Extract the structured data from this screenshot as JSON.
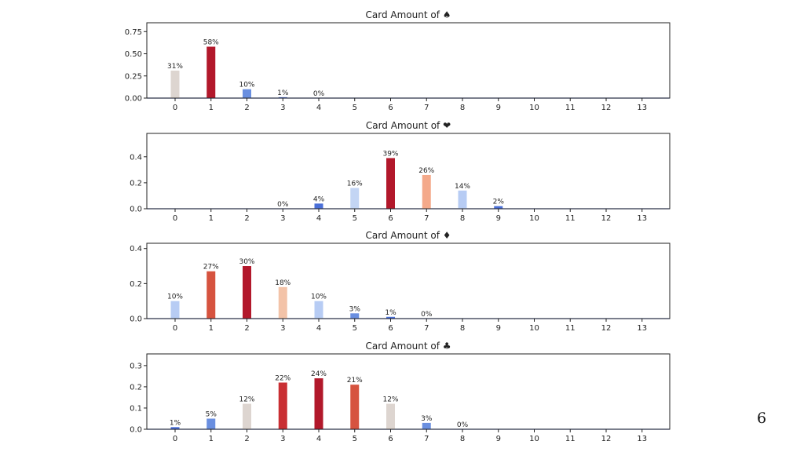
{
  "slide": {
    "number": "6"
  },
  "chart_data": [
    {
      "type": "bar",
      "title": "Card Amount of ♠",
      "categories": [
        "0",
        "1",
        "2",
        "3",
        "4",
        "5",
        "6",
        "7",
        "8",
        "9",
        "10",
        "11",
        "12",
        "13"
      ],
      "values": [
        0.31,
        0.58,
        0.1,
        0.01,
        0.0,
        0,
        0,
        0,
        0,
        0,
        0,
        0,
        0,
        0
      ],
      "data_labels": [
        "31%",
        "58%",
        "10%",
        "1%",
        "0%",
        "",
        "",
        "",
        "",
        "",
        "",
        "",
        "",
        ""
      ],
      "colors": [
        "#ddd5d0",
        "#b2182b",
        "#6a8fe0",
        "#4a6fd8",
        "#4a6fd8",
        "#4a6fd8",
        "#4a6fd8",
        "#4a6fd8",
        "#4a6fd8",
        "#4a6fd8",
        "#4a6fd8",
        "#4a6fd8",
        "#4a6fd8",
        "#4a6fd8"
      ],
      "ylim": [
        0,
        0.85
      ],
      "yticks": [
        0,
        0.25,
        0.5,
        0.75
      ],
      "ytick_labels": [
        "0.00",
        "0.25",
        "0.50",
        "0.75"
      ],
      "xlabel": "",
      "ylabel": "",
      "grid": false
    },
    {
      "type": "bar",
      "title": "Card Amount of ❤",
      "categories": [
        "0",
        "1",
        "2",
        "3",
        "4",
        "5",
        "6",
        "7",
        "8",
        "9",
        "10",
        "11",
        "12",
        "13"
      ],
      "values": [
        0,
        0,
        0,
        0.0,
        0.04,
        0.16,
        0.39,
        0.26,
        0.14,
        0.02,
        0,
        0,
        0,
        0
      ],
      "data_labels": [
        "",
        "",
        "",
        "0%",
        "4%",
        "16%",
        "39%",
        "26%",
        "14%",
        "2%",
        "",
        "",
        "",
        ""
      ],
      "colors": [
        "#4a6fd8",
        "#4a6fd8",
        "#4a6fd8",
        "#4a6fd8",
        "#4a6fd8",
        "#c3d5f4",
        "#b2182b",
        "#f4a98a",
        "#b7ccf4",
        "#4a6fd8",
        "#4a6fd8",
        "#4a6fd8",
        "#4a6fd8",
        "#4a6fd8"
      ],
      "ylim": [
        0,
        0.58
      ],
      "yticks": [
        0,
        0.2,
        0.4
      ],
      "ytick_labels": [
        "0.0",
        "0.2",
        "0.4"
      ],
      "xlabel": "",
      "ylabel": "",
      "grid": false
    },
    {
      "type": "bar",
      "title": "Card Amount of ♦",
      "categories": [
        "0",
        "1",
        "2",
        "3",
        "4",
        "5",
        "6",
        "7",
        "8",
        "9",
        "10",
        "11",
        "12",
        "13"
      ],
      "values": [
        0.1,
        0.27,
        0.3,
        0.18,
        0.1,
        0.03,
        0.01,
        0.0,
        0,
        0,
        0,
        0,
        0,
        0
      ],
      "data_labels": [
        "10%",
        "27%",
        "30%",
        "18%",
        "10%",
        "3%",
        "1%",
        "0%",
        "",
        "",
        "",
        "",
        "",
        ""
      ],
      "colors": [
        "#b7ccf4",
        "#d6533f",
        "#b2182b",
        "#f3c3a8",
        "#b7ccf4",
        "#6a8fe0",
        "#4a6fd8",
        "#4a6fd8",
        "#4a6fd8",
        "#4a6fd8",
        "#4a6fd8",
        "#4a6fd8",
        "#4a6fd8",
        "#4a6fd8"
      ],
      "ylim": [
        0,
        0.43
      ],
      "yticks": [
        0,
        0.2,
        0.4
      ],
      "ytick_labels": [
        "0.0",
        "0.2",
        "0.4"
      ],
      "xlabel": "",
      "ylabel": "",
      "grid": false
    },
    {
      "type": "bar",
      "title": "Card Amount of ♣",
      "categories": [
        "0",
        "1",
        "2",
        "3",
        "4",
        "5",
        "6",
        "7",
        "8",
        "9",
        "10",
        "11",
        "12",
        "13"
      ],
      "values": [
        0.01,
        0.05,
        0.12,
        0.22,
        0.24,
        0.21,
        0.12,
        0.03,
        0.0,
        0,
        0,
        0,
        0,
        0
      ],
      "data_labels": [
        "1%",
        "5%",
        "12%",
        "22%",
        "24%",
        "21%",
        "12%",
        "3%",
        "0%",
        "",
        "",
        "",
        "",
        ""
      ],
      "colors": [
        "#4a6fd8",
        "#6a8fe0",
        "#ddd5d0",
        "#c92f33",
        "#b2182b",
        "#d6533f",
        "#ddd5d0",
        "#6a8fe0",
        "#4a6fd8",
        "#4a6fd8",
        "#4a6fd8",
        "#4a6fd8",
        "#4a6fd8",
        "#4a6fd8"
      ],
      "ylim": [
        0,
        0.355
      ],
      "yticks": [
        0,
        0.1,
        0.2,
        0.3
      ],
      "ytick_labels": [
        "0.0",
        "0.1",
        "0.2",
        "0.3"
      ],
      "xlabel": "",
      "ylabel": "",
      "grid": false
    }
  ]
}
